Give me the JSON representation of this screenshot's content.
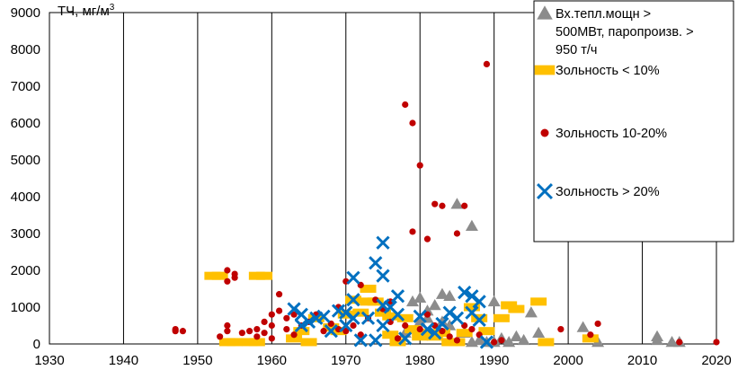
{
  "chart_data": {
    "type": "scatter",
    "title": "",
    "ylabel": "ТЧ, мг/м",
    "ylabel_sup": "3",
    "xlabel": "",
    "xlim": [
      1930,
      2020
    ],
    "ylim": [
      0,
      9000
    ],
    "x_ticks": [
      1930,
      1940,
      1950,
      1960,
      1970,
      1980,
      1990,
      2000,
      2010,
      2020
    ],
    "y_ticks": [
      0,
      1000,
      2000,
      3000,
      4000,
      5000,
      6000,
      7000,
      8000,
      9000
    ],
    "grid": "vertical",
    "legend_position": "top-right",
    "series": [
      {
        "name": "Вх.тепл.мощн > 500МВт, паропроизв. > 950 т/ч",
        "legend_lines": [
          "Вх.тепл.мощн >",
          "500МВт, паропроизв. >",
          "950 т/ч"
        ],
        "marker": "triangle",
        "color": "#8c8c8c",
        "points": [
          [
            1979,
            1150
          ],
          [
            1980,
            1250
          ],
          [
            1981,
            900
          ],
          [
            1982,
            1050
          ],
          [
            1983,
            1350
          ],
          [
            1984,
            1300
          ],
          [
            1985,
            3800
          ],
          [
            1987,
            3200
          ],
          [
            1977,
            100
          ],
          [
            1978,
            300
          ],
          [
            1980,
            600
          ],
          [
            1981,
            700
          ],
          [
            1983,
            600
          ],
          [
            1984,
            500
          ],
          [
            1986,
            300
          ],
          [
            1987,
            50
          ],
          [
            1988,
            100
          ],
          [
            1989,
            50
          ],
          [
            1990,
            1150
          ],
          [
            1990,
            50
          ],
          [
            1991,
            150
          ],
          [
            1992,
            50
          ],
          [
            1993,
            200
          ],
          [
            1994,
            100
          ],
          [
            1995,
            850
          ],
          [
            1996,
            300
          ],
          [
            2002,
            450
          ],
          [
            2004,
            50
          ],
          [
            2012,
            200
          ],
          [
            2012,
            100
          ],
          [
            2014,
            50
          ],
          [
            2015,
            50
          ]
        ]
      },
      {
        "name": "Зольность < 10%",
        "legend_lines": [
          "Зольность < 10%"
        ],
        "marker": "square",
        "color": "#ffc000",
        "points": [
          [
            1952,
            1850
          ],
          [
            1953,
            1850
          ],
          [
            1954,
            50
          ],
          [
            1955,
            50
          ],
          [
            1958,
            1850
          ],
          [
            1959,
            1850
          ],
          [
            1957,
            50
          ],
          [
            1958,
            50
          ],
          [
            1963,
            150
          ],
          [
            1964,
            350
          ],
          [
            1965,
            50
          ],
          [
            1966,
            700
          ],
          [
            1968,
            450
          ],
          [
            1969,
            350
          ],
          [
            1970,
            800
          ],
          [
            1971,
            1200
          ],
          [
            1972,
            850
          ],
          [
            1973,
            1500
          ],
          [
            1973,
            1150
          ],
          [
            1974,
            1150
          ],
          [
            1975,
            850
          ],
          [
            1976,
            750
          ],
          [
            1976,
            250
          ],
          [
            1977,
            50
          ],
          [
            1978,
            700
          ],
          [
            1979,
            400
          ],
          [
            1980,
            200
          ],
          [
            1981,
            300
          ],
          [
            1982,
            200
          ],
          [
            1983,
            300
          ],
          [
            1984,
            50
          ],
          [
            1985,
            50
          ],
          [
            1986,
            300
          ],
          [
            1987,
            1000
          ],
          [
            1988,
            700
          ],
          [
            1989,
            350
          ],
          [
            1991,
            700
          ],
          [
            1992,
            1050
          ],
          [
            1993,
            950
          ],
          [
            1996,
            1150
          ],
          [
            1997,
            50
          ],
          [
            2003,
            150
          ]
        ]
      },
      {
        "name": "Зольность 10-20%",
        "legend_lines": [
          "Зольность 10-20%"
        ],
        "marker": "circle",
        "color": "#c00000",
        "points": [
          [
            1947,
            400
          ],
          [
            1947,
            350
          ],
          [
            1948,
            350
          ],
          [
            1953,
            200
          ],
          [
            1954,
            2000
          ],
          [
            1954,
            1700
          ],
          [
            1955,
            1900
          ],
          [
            1955,
            1800
          ],
          [
            1954,
            350
          ],
          [
            1954,
            500
          ],
          [
            1956,
            300
          ],
          [
            1957,
            350
          ],
          [
            1958,
            400
          ],
          [
            1958,
            200
          ],
          [
            1959,
            600
          ],
          [
            1959,
            300
          ],
          [
            1960,
            800
          ],
          [
            1960,
            500
          ],
          [
            1960,
            150
          ],
          [
            1961,
            900
          ],
          [
            1961,
            1350
          ],
          [
            1962,
            700
          ],
          [
            1962,
            400
          ],
          [
            1963,
            800
          ],
          [
            1963,
            250
          ],
          [
            1964,
            500
          ],
          [
            1965,
            600
          ],
          [
            1966,
            800
          ],
          [
            1967,
            350
          ],
          [
            1968,
            550
          ],
          [
            1969,
            400
          ],
          [
            1969,
            1000
          ],
          [
            1970,
            1700
          ],
          [
            1970,
            350
          ],
          [
            1971,
            500
          ],
          [
            1972,
            1600
          ],
          [
            1972,
            250
          ],
          [
            1973,
            700
          ],
          [
            1974,
            1200
          ],
          [
            1975,
            950
          ],
          [
            1976,
            1150
          ],
          [
            1976,
            600
          ],
          [
            1977,
            150
          ],
          [
            1978,
            6500
          ],
          [
            1979,
            6000
          ],
          [
            1979,
            3050
          ],
          [
            1980,
            4850
          ],
          [
            1981,
            2850
          ],
          [
            1982,
            3800
          ],
          [
            1983,
            3750
          ],
          [
            1985,
            3000
          ],
          [
            1986,
            3750
          ],
          [
            1978,
            500
          ],
          [
            1980,
            400
          ],
          [
            1981,
            800
          ],
          [
            1982,
            500
          ],
          [
            1983,
            350
          ],
          [
            1984,
            200
          ],
          [
            1985,
            100
          ],
          [
            1986,
            500
          ],
          [
            1987,
            400
          ],
          [
            1988,
            250
          ],
          [
            1989,
            7600
          ],
          [
            1990,
            50
          ],
          [
            1991,
            100
          ],
          [
            1999,
            400
          ],
          [
            2003,
            250
          ],
          [
            2004,
            550
          ],
          [
            2015,
            50
          ],
          [
            2020,
            50
          ]
        ]
      },
      {
        "name": "Зольность > 20%",
        "legend_lines": [
          "Зольность > 20%"
        ],
        "marker": "x",
        "color": "#0070c0",
        "points": [
          [
            1963,
            950
          ],
          [
            1964,
            800
          ],
          [
            1964,
            500
          ],
          [
            1965,
            600
          ],
          [
            1966,
            700
          ],
          [
            1967,
            750
          ],
          [
            1968,
            350
          ],
          [
            1969,
            900
          ],
          [
            1970,
            850
          ],
          [
            1970,
            500
          ],
          [
            1971,
            1800
          ],
          [
            1971,
            1200
          ],
          [
            1971,
            700
          ],
          [
            1972,
            100
          ],
          [
            1973,
            700
          ],
          [
            1974,
            2200
          ],
          [
            1974,
            100
          ],
          [
            1975,
            2750
          ],
          [
            1975,
            1850
          ],
          [
            1975,
            1050
          ],
          [
            1975,
            500
          ],
          [
            1976,
            1000
          ],
          [
            1977,
            1300
          ],
          [
            1977,
            800
          ],
          [
            1978,
            150
          ],
          [
            1980,
            750
          ],
          [
            1981,
            400
          ],
          [
            1982,
            300
          ],
          [
            1983,
            550
          ],
          [
            1984,
            850
          ],
          [
            1985,
            700
          ],
          [
            1986,
            1400
          ],
          [
            1987,
            1300
          ],
          [
            1987,
            850
          ],
          [
            1988,
            1150
          ],
          [
            1988,
            650
          ],
          [
            1989,
            50
          ]
        ]
      }
    ]
  }
}
